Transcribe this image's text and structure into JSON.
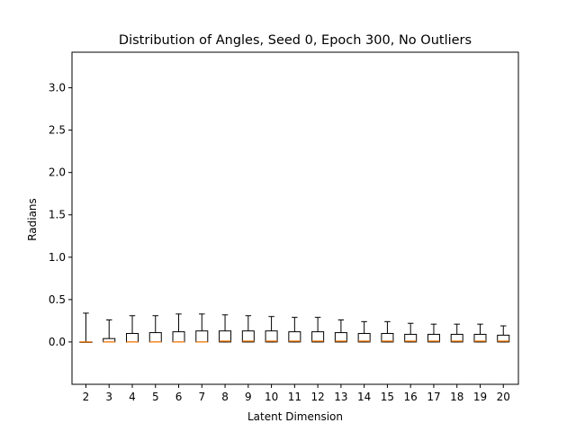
{
  "chart_data": {
    "type": "box",
    "title": "Distribution of Angles, Seed 0, Epoch 300, No Outliers",
    "xlabel": "Latent Dimension",
    "ylabel": "Radians",
    "ylim": [
      -0.5,
      3.42
    ],
    "y_ticks": [
      "0.0",
      "0.5",
      "1.0",
      "1.5",
      "2.0",
      "2.5",
      "3.0"
    ],
    "grid": false,
    "legend": "none",
    "colors": {
      "box": "#000000",
      "median": "#ff7f0e",
      "background": "#ffffff"
    },
    "categories": [
      "2",
      "3",
      "4",
      "5",
      "6",
      "7",
      "8",
      "9",
      "10",
      "11",
      "12",
      "13",
      "14",
      "15",
      "16",
      "17",
      "18",
      "19",
      "20"
    ],
    "boxes": [
      {
        "whislo": 0.0,
        "q1": 0.0,
        "med": 0.0,
        "q3": 0.0,
        "whishi": 0.34
      },
      {
        "whislo": 0.0,
        "q1": 0.0,
        "med": 0.0,
        "q3": 0.04,
        "whishi": 0.26
      },
      {
        "whislo": 0.0,
        "q1": 0.0,
        "med": 0.0,
        "q3": 0.1,
        "whishi": 0.31
      },
      {
        "whislo": 0.0,
        "q1": 0.0,
        "med": 0.0,
        "q3": 0.11,
        "whishi": 0.31
      },
      {
        "whislo": 0.0,
        "q1": 0.0,
        "med": 0.0,
        "q3": 0.12,
        "whishi": 0.33
      },
      {
        "whislo": 0.0,
        "q1": 0.0,
        "med": 0.0,
        "q3": 0.13,
        "whishi": 0.33
      },
      {
        "whislo": 0.0,
        "q1": 0.0,
        "med": 0.01,
        "q3": 0.13,
        "whishi": 0.32
      },
      {
        "whislo": 0.0,
        "q1": 0.0,
        "med": 0.01,
        "q3": 0.13,
        "whishi": 0.31
      },
      {
        "whislo": 0.0,
        "q1": 0.0,
        "med": 0.01,
        "q3": 0.13,
        "whishi": 0.3
      },
      {
        "whislo": 0.0,
        "q1": 0.0,
        "med": 0.01,
        "q3": 0.12,
        "whishi": 0.29
      },
      {
        "whislo": 0.0,
        "q1": 0.0,
        "med": 0.01,
        "q3": 0.12,
        "whishi": 0.29
      },
      {
        "whislo": 0.0,
        "q1": 0.0,
        "med": 0.01,
        "q3": 0.11,
        "whishi": 0.26
      },
      {
        "whislo": 0.0,
        "q1": 0.0,
        "med": 0.01,
        "q3": 0.1,
        "whishi": 0.24
      },
      {
        "whislo": 0.0,
        "q1": 0.0,
        "med": 0.01,
        "q3": 0.1,
        "whishi": 0.24
      },
      {
        "whislo": 0.0,
        "q1": 0.0,
        "med": 0.01,
        "q3": 0.09,
        "whishi": 0.22
      },
      {
        "whislo": 0.0,
        "q1": 0.0,
        "med": 0.01,
        "q3": 0.09,
        "whishi": 0.21
      },
      {
        "whislo": 0.0,
        "q1": 0.0,
        "med": 0.01,
        "q3": 0.09,
        "whishi": 0.21
      },
      {
        "whislo": 0.0,
        "q1": 0.0,
        "med": 0.01,
        "q3": 0.09,
        "whishi": 0.21
      },
      {
        "whislo": 0.0,
        "q1": 0.0,
        "med": 0.01,
        "q3": 0.08,
        "whishi": 0.19
      }
    ]
  }
}
